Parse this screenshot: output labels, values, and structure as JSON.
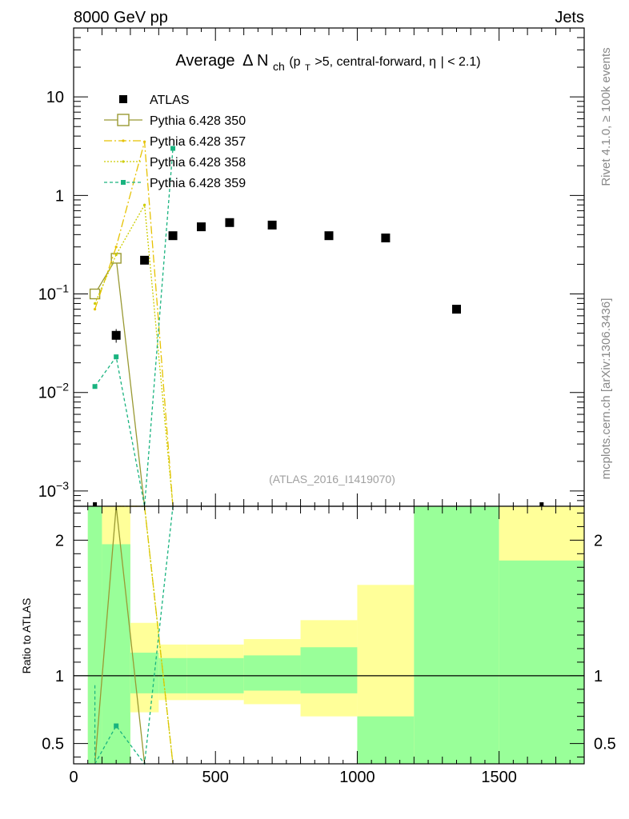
{
  "header": {
    "left": "8000 GeV pp",
    "right": "Jets"
  },
  "title": {
    "main": "Average",
    "delta": "Δ N",
    "sub_ch": "ch",
    "paren_open": " (p",
    "sub_T": "T",
    "rest": ">5, central-forward, ",
    "eta": "η",
    "tail": "| < 2.1)"
  },
  "side_labels": {
    "rivet": "Rivet 4.1.0, ≥ 100k events",
    "mcplots": "mcplots.cern.ch [arXiv:1306.3436]"
  },
  "watermark": "(ATLAS_2016_I1419070)",
  "ratio_ylabel": "Ratio to ATLAS",
  "legend": [
    {
      "label": "ATLAS",
      "color": "#000000",
      "style": "marker-square"
    },
    {
      "label": "Pythia 6.428 350",
      "color": "#999933",
      "style": "solid-open-square"
    },
    {
      "label": "Pythia 6.428 357",
      "color": "#e6c200",
      "style": "dashdot"
    },
    {
      "label": "Pythia 6.428 358",
      "color": "#cccc00",
      "style": "dotted"
    },
    {
      "label": "Pythia 6.428 359",
      "color": "#19b37f",
      "style": "dashed-square"
    }
  ],
  "colors": {
    "band_yellow": "#ffff99",
    "band_green": "#99ff99"
  },
  "chart_data": {
    "type": "scatter",
    "title": "Average Δ Nch (pT>5, central-forward, |η| < 2.1)",
    "xlim": [
      0,
      1800
    ],
    "main_ylim": [
      0.0007,
      50
    ],
    "main_yscale": "log",
    "main_yticks": [
      {
        "value": 0.001,
        "base": "10",
        "exp": "−3"
      },
      {
        "value": 0.01,
        "base": "10",
        "exp": "−2"
      },
      {
        "value": 0.1,
        "base": "10",
        "exp": "−1"
      },
      {
        "value": 1,
        "base": "1",
        "exp": ""
      },
      {
        "value": 10,
        "base": "10",
        "exp": ""
      }
    ],
    "xticks": [
      0,
      500,
      1000,
      1500
    ],
    "xtick_labels": [
      "0",
      "500",
      "1000",
      "1500"
    ],
    "ratio_ylim": [
      0.35,
      2.25
    ],
    "ratio_yticks": [
      0.5,
      1,
      2
    ],
    "ratio_ytick_labels": [
      "0.5",
      "1",
      "2"
    ],
    "atlas": {
      "x": [
        75,
        150,
        250,
        350,
        450,
        550,
        700,
        900,
        1100,
        1350,
        1650
      ],
      "y": [
        0.00065,
        0.038,
        0.22,
        0.39,
        0.48,
        0.53,
        0.5,
        0.39,
        0.37,
        0.07,
        0.00065
      ],
      "yerr_up": [
        0,
        0.006,
        0.02,
        0.03,
        0.03,
        0.03,
        0.03,
        0.03,
        0.03,
        0.006,
        0
      ]
    },
    "series": [
      {
        "name": "Pythia 6.428 350",
        "x": [
          75,
          150,
          250
        ],
        "y": [
          0.1,
          0.23,
          0.0007
        ]
      },
      {
        "name": "Pythia 6.428 357",
        "x": [
          75,
          150,
          250,
          350
        ],
        "y": [
          0.07,
          0.3,
          3.5,
          0.0007
        ]
      },
      {
        "name": "Pythia 6.428 358",
        "x": [
          75,
          150,
          250,
          350
        ],
        "y": [
          0.08,
          0.25,
          0.8,
          0.0007
        ]
      },
      {
        "name": "Pythia 6.428 359",
        "x": [
          75,
          150,
          250,
          350
        ],
        "y": [
          0.0115,
          0.023,
          0.0007,
          3.0
        ]
      }
    ],
    "ratio_bands": [
      {
        "x0": 50,
        "x1": 100,
        "y_lo": 0.35,
        "y_hi": 2.25,
        "g_lo": 0.35,
        "g_hi": 2.25
      },
      {
        "x0": 100,
        "x1": 200,
        "y_lo": 0.35,
        "y_hi": 2.25,
        "g_lo": 0.35,
        "g_hi": 1.97
      },
      {
        "x0": 200,
        "x1": 300,
        "y_lo": 0.73,
        "y_hi": 1.39,
        "g_lo": 0.87,
        "g_hi": 1.17
      },
      {
        "x0": 300,
        "x1": 400,
        "y_lo": 0.82,
        "y_hi": 1.23,
        "g_lo": 0.87,
        "g_hi": 1.13
      },
      {
        "x0": 400,
        "x1": 600,
        "y_lo": 0.82,
        "y_hi": 1.23,
        "g_lo": 0.87,
        "g_hi": 1.13
      },
      {
        "x0": 600,
        "x1": 800,
        "y_lo": 0.79,
        "y_hi": 1.27,
        "g_lo": 0.89,
        "g_hi": 1.15
      },
      {
        "x0": 800,
        "x1": 1000,
        "y_lo": 0.7,
        "y_hi": 1.41,
        "g_lo": 0.87,
        "g_hi": 1.21
      },
      {
        "x0": 1000,
        "x1": 1200,
        "y_lo": 0.35,
        "y_hi": 1.67,
        "g_lo": 0.35,
        "g_hi": 0.7
      },
      {
        "x0": 1200,
        "x1": 1500,
        "y_lo": 0.35,
        "y_hi": 2.25,
        "g_lo": 0.35,
        "g_hi": 2.25
      },
      {
        "x0": 1500,
        "x1": 1800,
        "y_lo": 0.35,
        "y_hi": 2.25,
        "g_lo": 0.35,
        "g_hi": 1.85
      }
    ],
    "ratio_series": [
      {
        "name": "Pythia 6.428 350",
        "x": [
          75,
          150,
          250
        ],
        "y": [
          0.2,
          2.3,
          0.2
        ]
      },
      {
        "name": "Pythia 6.428 357",
        "x": [
          150,
          250,
          350
        ],
        "y": [
          2.3,
          2.3,
          0.2
        ]
      },
      {
        "name": "Pythia 6.428 358",
        "x": [
          150,
          250,
          350
        ],
        "y": [
          2.3,
          2.3,
          0.2
        ]
      },
      {
        "name": "Pythia 6.428 359",
        "x": [
          75,
          150,
          250,
          350
        ],
        "y": [
          0.2,
          0.63,
          0.2,
          2.3
        ]
      }
    ]
  }
}
